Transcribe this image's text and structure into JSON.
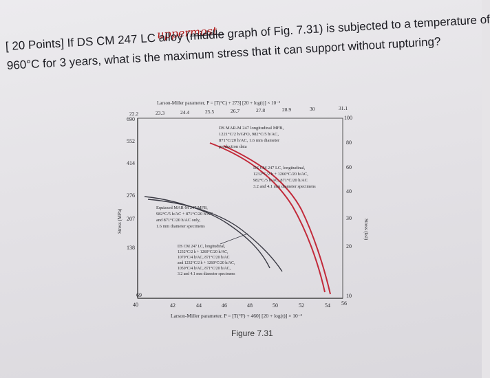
{
  "question": {
    "prefix": "[ 20 Points] If DS CM 247 LC alloy (",
    "struck_word": "middle",
    "rest_line1": " graph of Fig. 7.31) is subjected to a temperature of",
    "line2": "960°C for 3 years, what is the maximum stress that it can support without rupturing?",
    "handwritten_note": "uppermost"
  },
  "figure": {
    "top_axis_label": "Larson-Miller parameter, P = [T(°C) + 273] [20 + log(t)] × 10⁻³",
    "top_ticks": [
      "22.2",
      "23.3",
      "24.4",
      "25.5",
      "26.7",
      "27.8",
      "28.9",
      "30",
      "31.1"
    ],
    "bottom_axis_label": "Larson-Miller parameter, P = [T(°F) + 460] [20 + log(t)] × 10⁻³",
    "bottom_ticks": [
      "40",
      "42",
      "44",
      "46",
      "48",
      "50",
      "52",
      "54",
      "56"
    ],
    "left_axis_label": "Stress (MPa)",
    "left_ticks": [
      "690",
      "552",
      "414",
      "276",
      "207",
      "138",
      "69"
    ],
    "right_axis_label": "Stress (ksi)",
    "right_ticks": [
      "100",
      "80",
      "60",
      "40",
      "30",
      "20",
      "10"
    ],
    "annotations": {
      "a1": [
        "DS MAR-M 247 longitudinal MFB,",
        "1221°C/2 h/GFO, 982°C/5 h/AC,",
        "871°C/20 h/AC, 1.6 mm diameter",
        "production data"
      ],
      "a2": [
        "DS CM 247 LC, longitudinal,",
        "1232°C/2 h + 1260°C/20 h/AC,",
        "982°C/5 h/AC, 871°C/20 h/AC",
        "3.2 and 4.1 mm diameter specimens"
      ],
      "a3": [
        "Equiaxed MAR-M 247 MFB,",
        "982°C/5 h/AC + 871°C/20 h/AC",
        "and 871°C/20 h/AC only,",
        "1.6 mm diameter specimens"
      ],
      "a4": [
        "DS CM 247 LC, longitudinal,",
        "1232°C/2 h + 1260°C/20 h/AC,",
        "1079°C/4 h/AC, 871°C/20 h/AC",
        "and 1232°C/2 h + 1260°C/20 h/AC,",
        "1050°C/4 h/AC, 871°C/20 h/AC,",
        "3.2 and 4.1 mm diameter specimens"
      ]
    },
    "caption": "Figure 7.31"
  },
  "colors": {
    "curve_red": "#c22a3a",
    "curve_dark": "#3a3a44",
    "handwriting": "#b01a1a"
  }
}
